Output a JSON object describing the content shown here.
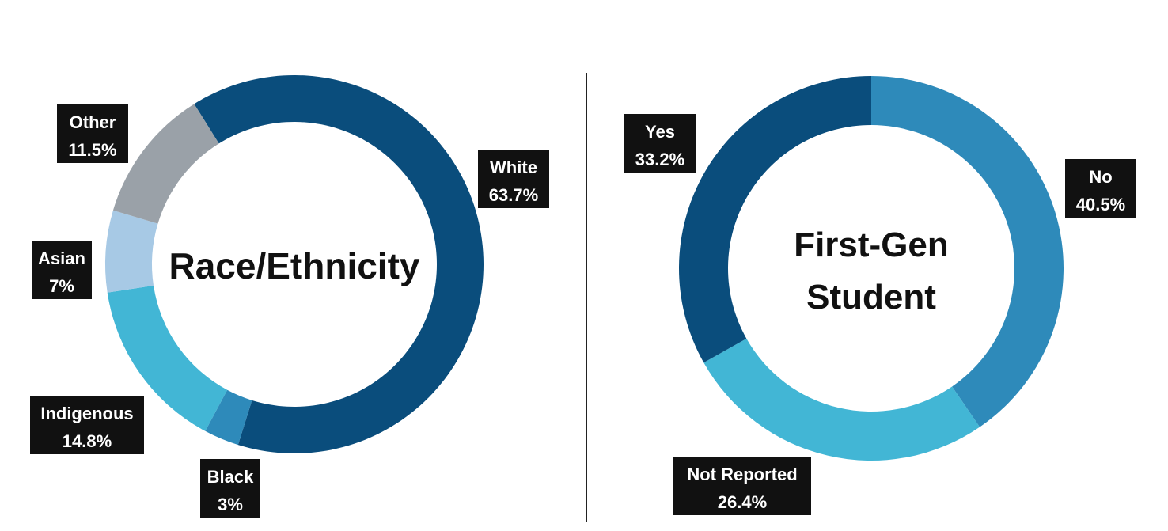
{
  "colors": {
    "dark_blue": "#0a4d7c",
    "mid_blue": "#2e8aba",
    "cyan": "#42b6d5",
    "light_blue": "#a7c9e5",
    "gray": "#9aa1a8",
    "label_bg": "#111111",
    "divider": "#222222"
  },
  "chart_data": [
    {
      "type": "pie",
      "variant": "donut",
      "title": "Race/Ethnicity",
      "categories": [
        "White",
        "Black",
        "Indigenous",
        "Asian",
        "Other"
      ],
      "values": [
        63.7,
        3,
        14.8,
        7,
        11.5
      ],
      "value_labels": [
        "63.7%",
        "3%",
        "14.8%",
        "7%",
        "11.5%"
      ],
      "colors": [
        "#0a4d7c",
        "#2e8aba",
        "#42b6d5",
        "#a7c9e5",
        "#9aa1a8"
      ],
      "start_angle_deg": -32,
      "direction": "clockwise"
    },
    {
      "type": "pie",
      "variant": "donut",
      "title_lines": [
        "First-Gen",
        "Student"
      ],
      "categories": [
        "No",
        "Not Reported",
        "Yes"
      ],
      "values": [
        40.5,
        26.4,
        33.2
      ],
      "value_labels": [
        "40.5%",
        "26.4%",
        "33.2%"
      ],
      "colors": [
        "#2e8aba",
        "#42b6d5",
        "#0a4d7c"
      ],
      "start_angle_deg": 0,
      "direction": "clockwise"
    }
  ]
}
